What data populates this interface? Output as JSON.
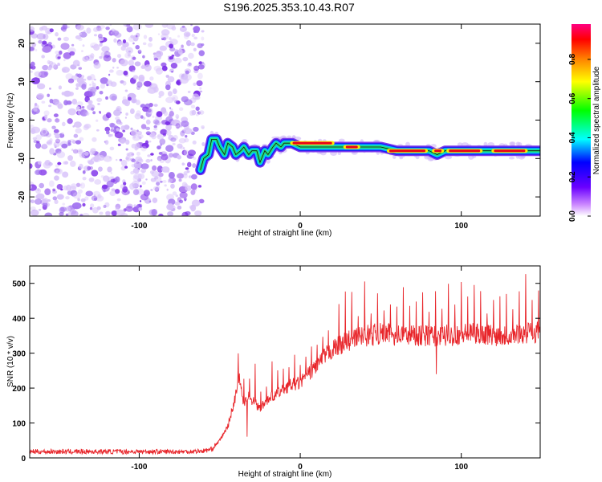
{
  "title": "S196.2025.353.10.43.R07",
  "chart_data": [
    {
      "type": "heatmap",
      "xlabel": "Height of straight line (km)",
      "ylabel": "Frequency (Hz)",
      "xlim": [
        -168,
        149
      ],
      "ylim": [
        -25,
        25
      ],
      "xticks": [
        -100,
        0,
        100
      ],
      "yticks": [
        -20,
        -10,
        0,
        10,
        20
      ],
      "noise_region_x": [
        -168,
        -62
      ],
      "ridge": {
        "x": [
          -62,
          -60,
          -57,
          -55,
          -52,
          -50,
          -47,
          -45,
          -42,
          -40,
          -37,
          -35,
          -32,
          -30,
          -27,
          -25,
          -22,
          -20,
          -17,
          -15,
          -12,
          -10,
          -7,
          -5,
          0,
          10,
          20,
          30,
          40,
          50,
          60,
          70,
          80,
          85,
          90,
          100,
          110,
          120,
          130,
          140,
          149
        ],
        "y": [
          -13,
          -10,
          -9,
          -5,
          -5,
          -7,
          -9,
          -6,
          -7,
          -9,
          -8,
          -7,
          -9,
          -8,
          -8,
          -11,
          -8,
          -9,
          -7,
          -6,
          -7,
          -6,
          -6,
          -6,
          -7,
          -7,
          -7,
          -7,
          -7,
          -7,
          -8,
          -8,
          -8,
          -9,
          -8,
          -8,
          -8,
          -8,
          -8,
          -8,
          -8
        ]
      },
      "colorbar": {
        "label": "Normalized spectral amplitude",
        "ticks": [
          "0.0",
          "0.2",
          "0.4",
          "0.6",
          "0.8"
        ],
        "range": [
          0,
          0.98
        ]
      }
    },
    {
      "type": "line",
      "xlabel": "Height of straight line (km)",
      "ylabel": "SNR (10 * v/v)",
      "xlim": [
        -168,
        149
      ],
      "ylim": [
        0,
        550
      ],
      "xticks": [
        -100,
        0,
        100
      ],
      "yticks": [
        0,
        100,
        200,
        300,
        400,
        500
      ],
      "series": [
        {
          "name": "SNR",
          "color": "#e8252a",
          "x": [
            -168,
            -150,
            -130,
            -110,
            -90,
            -70,
            -60,
            -55,
            -50,
            -45,
            -40,
            -38,
            -35,
            -32,
            -30,
            -28,
            -25,
            -20,
            -15,
            -10,
            -5,
            0,
            5,
            10,
            15,
            20,
            25,
            30,
            40,
            50,
            60,
            70,
            80,
            90,
            100,
            110,
            120,
            130,
            140,
            149
          ],
          "y": [
            18,
            18,
            18,
            18,
            18,
            18,
            20,
            25,
            50,
            90,
            180,
            240,
            150,
            190,
            160,
            170,
            140,
            170,
            180,
            200,
            210,
            215,
            240,
            265,
            290,
            310,
            325,
            335,
            350,
            355,
            352,
            352,
            350,
            350,
            355,
            355,
            352,
            350,
            358,
            362
          ]
        }
      ]
    }
  ],
  "colors": {
    "snr_line": "#e8252a",
    "noise": "#7b2de8",
    "frame": "#000000"
  }
}
